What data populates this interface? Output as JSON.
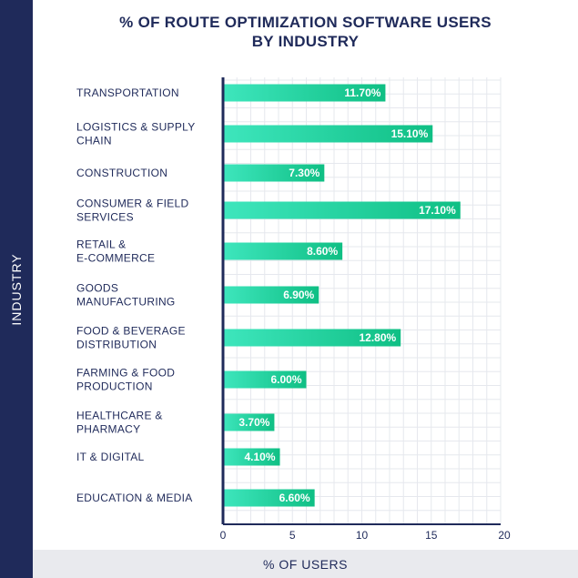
{
  "title_line1": "% OF ROUTE OPTIMIZATION SOFTWARE USERS",
  "title_line2": "BY INDUSTRY",
  "ylabel": "INDUSTRY",
  "xlabel": "% OF USERS",
  "colors": {
    "sidebar": "#1f2a5a",
    "bar_start": "#3ee6bd",
    "bar_end": "#0fbf84",
    "text": "#1f2a5a",
    "grid": "#e6e8ee"
  },
  "chart_data": {
    "type": "bar",
    "orientation": "horizontal",
    "title": "% OF ROUTE OPTIMIZATION SOFTWARE USERS BY INDUSTRY",
    "xlabel": "% OF USERS",
    "ylabel": "INDUSTRY",
    "xlim": [
      0,
      20
    ],
    "xticks": [
      0,
      5,
      10,
      15,
      20
    ],
    "grid": true,
    "categories": [
      [
        "TRANSPORTATION"
      ],
      [
        "LOGISTICS & SUPPLY",
        "CHAIN"
      ],
      [
        "CONSTRUCTION"
      ],
      [
        "CONSUMER & FIELD",
        "SERVICES"
      ],
      [
        "RETAIL &",
        "E-COMMERCE"
      ],
      [
        "GOODS",
        "MANUFACTURING"
      ],
      [
        "FOOD & BEVERAGE",
        "DISTRIBUTION"
      ],
      [
        "FARMING & FOOD",
        "PRODUCTION"
      ],
      [
        "HEALTHCARE &",
        "PHARMACY"
      ],
      [
        "IT & DIGITAL"
      ],
      [
        "EDUCATION & MEDIA"
      ]
    ],
    "values": [
      11.7,
      15.1,
      7.3,
      17.1,
      8.6,
      6.9,
      12.8,
      6.0,
      3.7,
      4.1,
      6.6
    ],
    "value_labels": [
      "11.70%",
      "15.10%",
      "7.30%",
      "17.10%",
      "8.60%",
      "6.90%",
      "12.80%",
      "6.00%",
      "3.70%",
      "4.10%",
      "6.60%"
    ]
  }
}
